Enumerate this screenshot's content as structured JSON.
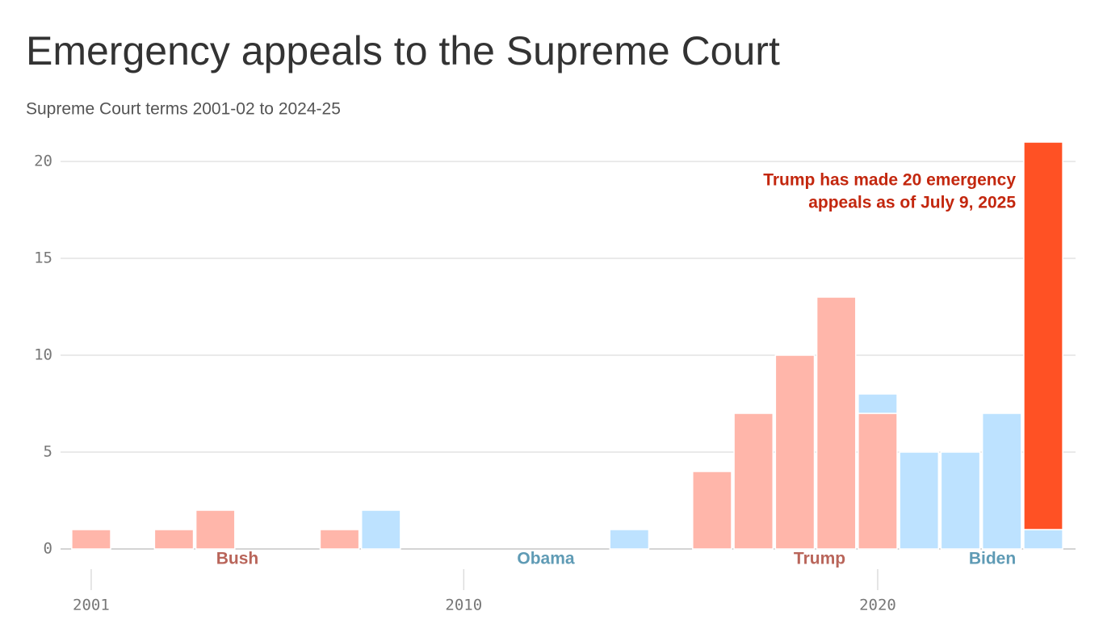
{
  "chart_data": {
    "type": "stacked-bar",
    "title": "Emergency appeals to the Supreme Court",
    "subtitle": "Supreme Court terms 2001-02 to 2024-25",
    "x": [
      2001,
      2002,
      2003,
      2004,
      2005,
      2006,
      2007,
      2008,
      2009,
      2010,
      2011,
      2012,
      2013,
      2014,
      2015,
      2016,
      2017,
      2018,
      2019,
      2020,
      2021,
      2022,
      2023,
      2024
    ],
    "series": [
      {
        "color": "#ffb6aa",
        "values": [
          1,
          0,
          1,
          2,
          0,
          0,
          1,
          0,
          0,
          0,
          0,
          0,
          0,
          0,
          0,
          4,
          7,
          10,
          13,
          7,
          0,
          0,
          0,
          0
        ]
      },
      {
        "color": "#bde2ff",
        "values": [
          0,
          0,
          0,
          0,
          0,
          0,
          0,
          2,
          0,
          0,
          0,
          0,
          0,
          1,
          0,
          0,
          0,
          0,
          0,
          1,
          5,
          5,
          7,
          1
        ]
      },
      {
        "color": "#ff5124",
        "values": [
          0,
          0,
          0,
          0,
          0,
          0,
          0,
          0,
          0,
          0,
          0,
          0,
          0,
          0,
          0,
          0,
          0,
          0,
          0,
          0,
          0,
          0,
          0,
          20
        ]
      }
    ],
    "xlim": [
      2000.26,
      2024.78
    ],
    "xticks": [
      2001,
      2010,
      2020
    ],
    "ylim": [
      0,
      21
    ],
    "yticks": [
      0,
      5,
      10,
      15,
      20
    ],
    "grid": true,
    "period_labels": [
      {
        "text": "Bush",
        "color": "#b9655a"
      },
      {
        "text": "Obama",
        "color": "#5f9bb5"
      },
      {
        "text": "Trump",
        "color": "#b9655a"
      },
      {
        "text": "Biden",
        "color": "#5f9bb5"
      }
    ],
    "annotation": {
      "lines": [
        "Trump has made 20 emergency",
        "appeals as of July 9, 2025"
      ],
      "color": "#c3270e"
    }
  }
}
